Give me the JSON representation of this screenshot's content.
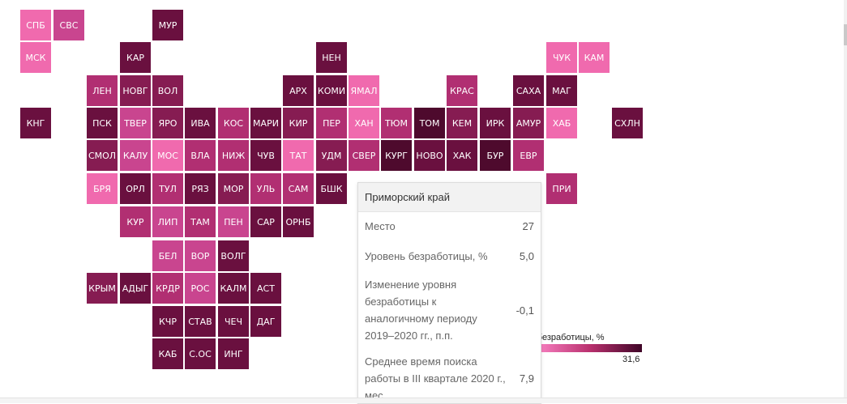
{
  "colors": {
    "light": "#f06aae",
    "pink": "#c9458f",
    "mid": "#b12f72",
    "dark": "#861c52",
    "darker": "#6a103f",
    "darkest": "#4e0a2d"
  },
  "regions": [
    {
      "label": "СПБ",
      "shade": "light"
    },
    {
      "label": "СВС",
      "shade": "pink"
    },
    {
      "label": "МУР",
      "shade": "darker"
    },
    {
      "label": "МСК",
      "shade": "light"
    },
    {
      "label": "КАР",
      "shade": "darker"
    },
    {
      "label": "НЕН",
      "shade": "darker"
    },
    {
      "label": "ЧУК",
      "shade": "light"
    },
    {
      "label": "КАМ",
      "shade": "light"
    },
    {
      "label": "ЛЕН",
      "shade": "mid"
    },
    {
      "label": "НОВГ",
      "shade": "dark"
    },
    {
      "label": "ВОЛ",
      "shade": "dark"
    },
    {
      "label": "АРХ",
      "shade": "darker"
    },
    {
      "label": "КОМИ",
      "shade": "darker"
    },
    {
      "label": "ЯМАЛ",
      "shade": "light"
    },
    {
      "label": "КРАС",
      "shade": "mid"
    },
    {
      "label": "САХА",
      "shade": "darker"
    },
    {
      "label": "МАГ",
      "shade": "darker"
    },
    {
      "label": "КНГ",
      "shade": "darker"
    },
    {
      "label": "ПСК",
      "shade": "darker"
    },
    {
      "label": "ТВЕР",
      "shade": "pink"
    },
    {
      "label": "ЯРО",
      "shade": "dark"
    },
    {
      "label": "ИВА",
      "shade": "darker"
    },
    {
      "label": "КОС",
      "shade": "mid"
    },
    {
      "label": "МАРИ",
      "shade": "darker"
    },
    {
      "label": "КИР",
      "shade": "dark"
    },
    {
      "label": "ПЕР",
      "shade": "mid"
    },
    {
      "label": "ХАН",
      "shade": "light"
    },
    {
      "label": "ТЮМ",
      "shade": "mid"
    },
    {
      "label": "ТОМ",
      "shade": "darkest"
    },
    {
      "label": "КЕМ",
      "shade": "dark"
    },
    {
      "label": "ИРК",
      "shade": "darker"
    },
    {
      "label": "АМУР",
      "shade": "dark"
    },
    {
      "label": "ХАБ",
      "shade": "light"
    },
    {
      "label": "СХЛН",
      "shade": "darker"
    },
    {
      "label": "СМОЛ",
      "shade": "dark"
    },
    {
      "label": "КАЛУ",
      "shade": "pink"
    },
    {
      "label": "МОС",
      "shade": "light"
    },
    {
      "label": "ВЛА",
      "shade": "mid"
    },
    {
      "label": "НИЖ",
      "shade": "mid"
    },
    {
      "label": "ЧУВ",
      "shade": "darker"
    },
    {
      "label": "ТАТ",
      "shade": "light"
    },
    {
      "label": "УДМ",
      "shade": "dark"
    },
    {
      "label": "СВЕР",
      "shade": "mid"
    },
    {
      "label": "КУРГ",
      "shade": "darkest"
    },
    {
      "label": "НОВО",
      "shade": "darker"
    },
    {
      "label": "ХАК",
      "shade": "darker"
    },
    {
      "label": "БУР",
      "shade": "darkest"
    },
    {
      "label": "ЕВР",
      "shade": "mid"
    },
    {
      "label": "БРЯ",
      "shade": "light"
    },
    {
      "label": "ОРЛ",
      "shade": "darker"
    },
    {
      "label": "ТУЛ",
      "shade": "mid"
    },
    {
      "label": "РЯЗ",
      "shade": "darker"
    },
    {
      "label": "МОР",
      "shade": "dark"
    },
    {
      "label": "УЛЬ",
      "shade": "mid"
    },
    {
      "label": "САМ",
      "shade": "mid"
    },
    {
      "label": "БШК",
      "shade": "darker"
    },
    {
      "label": "ПРИ",
      "shade": "mid"
    },
    {
      "label": "КУР",
      "shade": "mid"
    },
    {
      "label": "ЛИП",
      "shade": "pink"
    },
    {
      "label": "ТАМ",
      "shade": "mid"
    },
    {
      "label": "ПЕН",
      "shade": "pink"
    },
    {
      "label": "САР",
      "shade": "darker"
    },
    {
      "label": "ОРНБ",
      "shade": "darker"
    },
    {
      "label": "БЕЛ",
      "shade": "pink"
    },
    {
      "label": "ВОР",
      "shade": "pink"
    },
    {
      "label": "ВОЛГ",
      "shade": "darker"
    },
    {
      "label": "КРЫМ",
      "shade": "dark"
    },
    {
      "label": "АДЫГ",
      "shade": "darker"
    },
    {
      "label": "КРДР",
      "shade": "mid"
    },
    {
      "label": "РОС",
      "shade": "pink"
    },
    {
      "label": "КАЛМ",
      "shade": "darker"
    },
    {
      "label": "АСТ",
      "shade": "darker"
    },
    {
      "label": "КЧР",
      "shade": "darker"
    },
    {
      "label": "СТАВ",
      "shade": "darker"
    },
    {
      "label": "ЧЕЧ",
      "shade": "darker"
    },
    {
      "label": "ДАГ",
      "shade": "darker"
    },
    {
      "label": "КАБ",
      "shade": "darker"
    },
    {
      "label": "С.ОС",
      "shade": "darker"
    },
    {
      "label": "ИНГ",
      "shade": "darker"
    }
  ],
  "legend": {
    "title": "ь безработицы, %",
    "max": "31,6"
  },
  "tooltip": {
    "title": "Приморский край",
    "rows": [
      {
        "label": "Место",
        "value": "27"
      },
      {
        "label": "Уровень безработицы, %",
        "value": "5,0"
      },
      {
        "label": "Изменение уровня безработицы к аналогичному периоду 2019–2020 гг., п.п.",
        "value": "-0,1"
      },
      {
        "label": "Среднее время поиска работы в III квартале 2020 г., мес.",
        "value": "7,9"
      }
    ]
  }
}
